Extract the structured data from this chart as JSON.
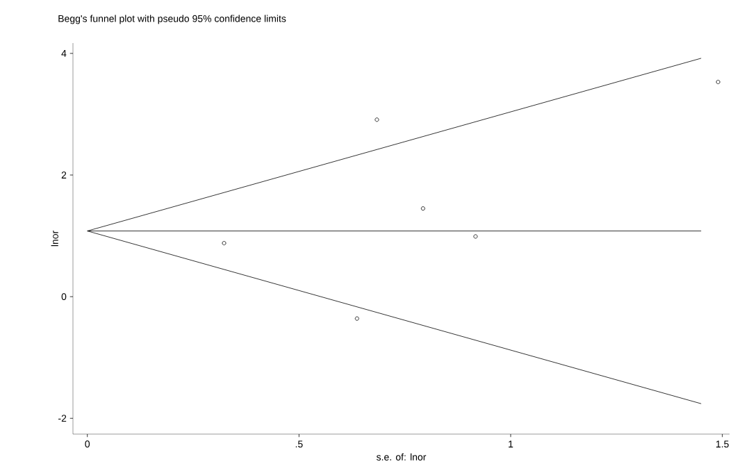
{
  "chart_data": {
    "type": "scatter",
    "title": "Begg's funnel plot with pseudo 95% confidence limits",
    "xlabel": "s.e. of: lnor",
    "ylabel": "lnor",
    "xlim": [
      -0.034,
      1.517
    ],
    "ylim": [
      -2.26,
      4.17
    ],
    "xticks": [
      0,
      {
        "value": 0.5,
        "label": ".5"
      },
      1,
      1.5
    ],
    "yticks": [
      -2,
      0,
      2,
      4
    ],
    "series": [
      {
        "marker": "circle",
        "color": "#000000",
        "x": [
          0.323,
          0.637,
          0.684,
          0.793,
          0.917,
          1.49
        ],
        "values": [
          0.88,
          -0.36,
          2.91,
          1.45,
          0.99,
          3.53
        ]
      },
      {
        "type": "line",
        "color": "#000000",
        "x": [
          0,
          1.45
        ],
        "values": [
          1.08,
          1.08
        ]
      },
      {
        "type": "line",
        "color": "#000000",
        "x": [
          0,
          1.45
        ],
        "values": [
          1.08,
          3.92
        ]
      },
      {
        "type": "line",
        "color": "#000000",
        "x": [
          0,
          1.45
        ],
        "values": [
          1.08,
          -1.76
        ]
      }
    ]
  }
}
